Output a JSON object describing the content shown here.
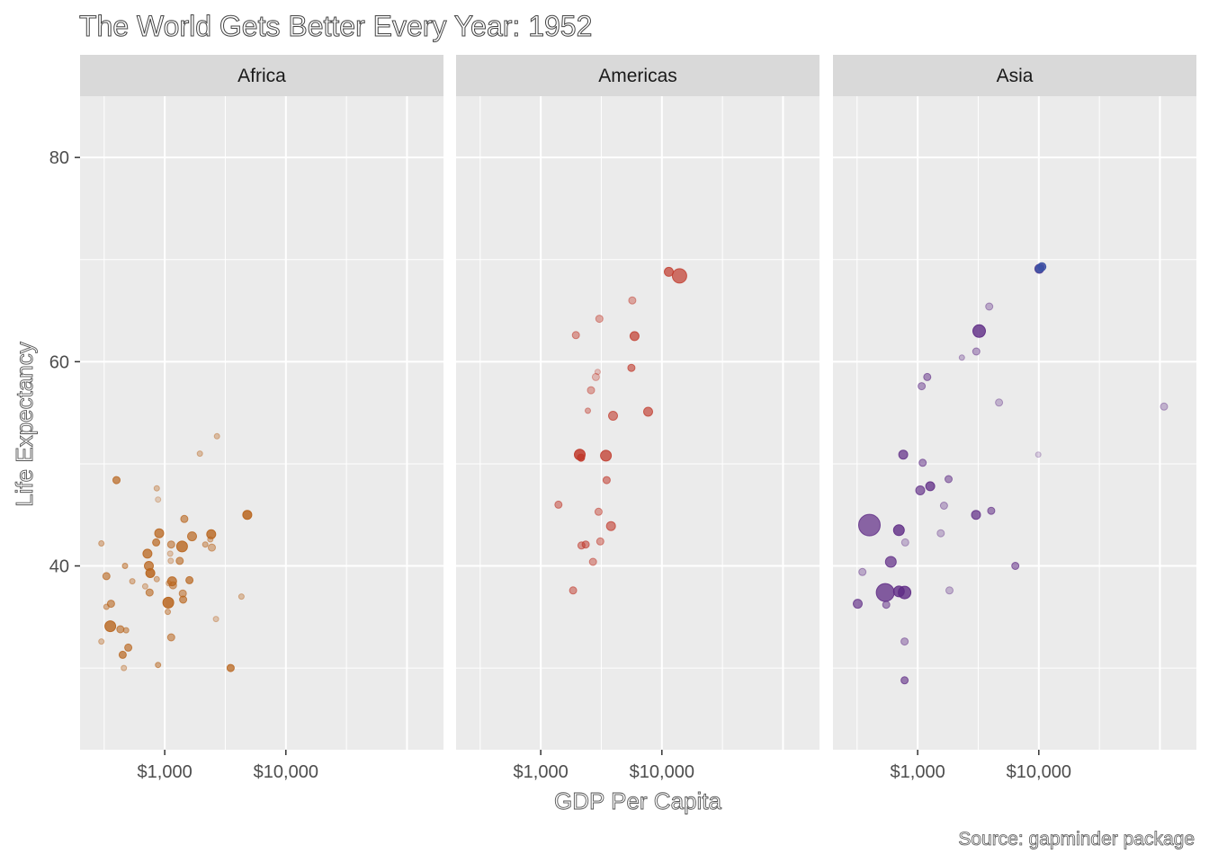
{
  "chart_data": {
    "type": "scatter",
    "title": "The World Gets Better Every Year: 1952",
    "xlabel": "GDP Per Capita",
    "ylabel": "Life Expectancy",
    "caption": "Source: gapminder package",
    "x_scale": "log10",
    "xlim": [
      200,
      200000
    ],
    "ylim": [
      22,
      86
    ],
    "x_ticks": [
      1000,
      10000
    ],
    "x_tick_labels": [
      "$1,000",
      "$10,000"
    ],
    "y_ticks": [
      40,
      60,
      80
    ],
    "y_tick_labels": [
      "40",
      "60",
      "80"
    ],
    "grid": true,
    "legend": "none",
    "panels": [
      {
        "name": "Africa",
        "color": "#b8651e",
        "points": [
          {
            "x": 300,
            "y": 42.2,
            "s": 3,
            "a": 0.4
          },
          {
            "x": 300,
            "y": 32.6,
            "s": 3,
            "a": 0.35
          },
          {
            "x": 330,
            "y": 39.0,
            "s": 4,
            "a": 0.6
          },
          {
            "x": 330,
            "y": 36.0,
            "s": 3,
            "a": 0.45
          },
          {
            "x": 360,
            "y": 36.3,
            "s": 4,
            "a": 0.6
          },
          {
            "x": 355,
            "y": 34.1,
            "s": 6,
            "a": 0.8
          },
          {
            "x": 400,
            "y": 48.4,
            "s": 4,
            "a": 0.7
          },
          {
            "x": 430,
            "y": 33.8,
            "s": 4,
            "a": 0.6
          },
          {
            "x": 450,
            "y": 31.3,
            "s": 4,
            "a": 0.7
          },
          {
            "x": 470,
            "y": 40.0,
            "s": 3,
            "a": 0.5
          },
          {
            "x": 480,
            "y": 33.7,
            "s": 3,
            "a": 0.5
          },
          {
            "x": 460,
            "y": 30.0,
            "s": 3,
            "a": 0.35
          },
          {
            "x": 500,
            "y": 32.0,
            "s": 4,
            "a": 0.65
          },
          {
            "x": 540,
            "y": 38.5,
            "s": 3,
            "a": 0.4
          },
          {
            "x": 720,
            "y": 41.2,
            "s": 5,
            "a": 0.75
          },
          {
            "x": 740,
            "y": 40.0,
            "s": 5,
            "a": 0.75
          },
          {
            "x": 760,
            "y": 39.3,
            "s": 5,
            "a": 0.85
          },
          {
            "x": 750,
            "y": 37.4,
            "s": 4,
            "a": 0.6
          },
          {
            "x": 690,
            "y": 38.0,
            "s": 3,
            "a": 0.35
          },
          {
            "x": 850,
            "y": 42.3,
            "s": 4,
            "a": 0.7
          },
          {
            "x": 900,
            "y": 43.2,
            "s": 5,
            "a": 0.75
          },
          {
            "x": 860,
            "y": 47.6,
            "s": 3,
            "a": 0.35
          },
          {
            "x": 880,
            "y": 46.5,
            "s": 3,
            "a": 0.25
          },
          {
            "x": 860,
            "y": 38.7,
            "s": 3,
            "a": 0.4
          },
          {
            "x": 880,
            "y": 30.3,
            "s": 3,
            "a": 0.5
          },
          {
            "x": 1070,
            "y": 36.4,
            "s": 6,
            "a": 0.85
          },
          {
            "x": 1080,
            "y": 38.3,
            "s": 3,
            "a": 0.35
          },
          {
            "x": 1060,
            "y": 35.5,
            "s": 3,
            "a": 0.45
          },
          {
            "x": 1150,
            "y": 38.5,
            "s": 5,
            "a": 0.75
          },
          {
            "x": 1170,
            "y": 38.1,
            "s": 4,
            "a": 0.55
          },
          {
            "x": 1130,
            "y": 42.1,
            "s": 4,
            "a": 0.55
          },
          {
            "x": 1110,
            "y": 41.2,
            "s": 3,
            "a": 0.3
          },
          {
            "x": 1120,
            "y": 40.5,
            "s": 3,
            "a": 0.3
          },
          {
            "x": 1130,
            "y": 33.0,
            "s": 4,
            "a": 0.55
          },
          {
            "x": 1330,
            "y": 40.5,
            "s": 4,
            "a": 0.6
          },
          {
            "x": 1390,
            "y": 41.9,
            "s": 6,
            "a": 0.8
          },
          {
            "x": 1450,
            "y": 44.6,
            "s": 4,
            "a": 0.6
          },
          {
            "x": 1410,
            "y": 37.3,
            "s": 4,
            "a": 0.55
          },
          {
            "x": 1420,
            "y": 36.7,
            "s": 4,
            "a": 0.65
          },
          {
            "x": 1600,
            "y": 38.6,
            "s": 4,
            "a": 0.7
          },
          {
            "x": 1680,
            "y": 42.9,
            "s": 5,
            "a": 0.7
          },
          {
            "x": 1950,
            "y": 51.0,
            "s": 3,
            "a": 0.35
          },
          {
            "x": 2160,
            "y": 42.1,
            "s": 3,
            "a": 0.45
          },
          {
            "x": 2420,
            "y": 43.1,
            "s": 5,
            "a": 0.8
          },
          {
            "x": 2380,
            "y": 42.6,
            "s": 3,
            "a": 0.4
          },
          {
            "x": 2450,
            "y": 41.8,
            "s": 4,
            "a": 0.45
          },
          {
            "x": 2650,
            "y": 34.8,
            "s": 3,
            "a": 0.3
          },
          {
            "x": 2700,
            "y": 52.7,
            "s": 3,
            "a": 0.35
          },
          {
            "x": 3500,
            "y": 30.0,
            "s": 4,
            "a": 0.75
          },
          {
            "x": 4300,
            "y": 37.0,
            "s": 3,
            "a": 0.35
          },
          {
            "x": 4800,
            "y": 45.0,
            "s": 5,
            "a": 0.85
          }
        ]
      },
      {
        "name": "Americas",
        "color": "#c0392b",
        "points": [
          {
            "x": 1400,
            "y": 46.0,
            "s": 4,
            "a": 0.5
          },
          {
            "x": 1850,
            "y": 37.6,
            "s": 4,
            "a": 0.5
          },
          {
            "x": 1950,
            "y": 62.6,
            "s": 4,
            "a": 0.45
          },
          {
            "x": 2100,
            "y": 50.9,
            "s": 6,
            "a": 0.85
          },
          {
            "x": 2150,
            "y": 50.6,
            "s": 4,
            "a": 0.85
          },
          {
            "x": 2170,
            "y": 42.0,
            "s": 4,
            "a": 0.5
          },
          {
            "x": 2350,
            "y": 42.1,
            "s": 4,
            "a": 0.55
          },
          {
            "x": 2450,
            "y": 55.2,
            "s": 3,
            "a": 0.4
          },
          {
            "x": 2600,
            "y": 57.2,
            "s": 4,
            "a": 0.4
          },
          {
            "x": 2700,
            "y": 40.4,
            "s": 4,
            "a": 0.45
          },
          {
            "x": 2850,
            "y": 58.5,
            "s": 4,
            "a": 0.3
          },
          {
            "x": 2950,
            "y": 59.0,
            "s": 3,
            "a": 0.25
          },
          {
            "x": 3050,
            "y": 64.2,
            "s": 4,
            "a": 0.4
          },
          {
            "x": 3000,
            "y": 45.3,
            "s": 4,
            "a": 0.45
          },
          {
            "x": 3100,
            "y": 42.4,
            "s": 4,
            "a": 0.45
          },
          {
            "x": 3450,
            "y": 50.8,
            "s": 6,
            "a": 0.75
          },
          {
            "x": 3500,
            "y": 48.4,
            "s": 4,
            "a": 0.55
          },
          {
            "x": 3800,
            "y": 43.9,
            "s": 5,
            "a": 0.6
          },
          {
            "x": 3950,
            "y": 54.7,
            "s": 5,
            "a": 0.6
          },
          {
            "x": 5600,
            "y": 59.4,
            "s": 4,
            "a": 0.6
          },
          {
            "x": 5700,
            "y": 66.0,
            "s": 4,
            "a": 0.4
          },
          {
            "x": 5950,
            "y": 62.5,
            "s": 5,
            "a": 0.7
          },
          {
            "x": 7700,
            "y": 55.1,
            "s": 5,
            "a": 0.65
          },
          {
            "x": 11400,
            "y": 68.8,
            "s": 5,
            "a": 0.7
          },
          {
            "x": 13990,
            "y": 68.4,
            "s": 8,
            "a": 0.7
          }
        ]
      },
      {
        "name": "Asia",
        "color": "#5e2a84",
        "points": [
          {
            "x": 320,
            "y": 36.3,
            "s": 5,
            "a": 0.65
          },
          {
            "x": 350,
            "y": 39.4,
            "s": 4,
            "a": 0.35
          },
          {
            "x": 400,
            "y": 44.0,
            "s": 12,
            "a": 0.7
          },
          {
            "x": 550,
            "y": 36.2,
            "s": 4,
            "a": 0.5
          },
          {
            "x": 540,
            "y": 37.4,
            "s": 10,
            "a": 0.75
          },
          {
            "x": 600,
            "y": 40.4,
            "s": 6,
            "a": 0.7
          },
          {
            "x": 700,
            "y": 37.5,
            "s": 6,
            "a": 0.8
          },
          {
            "x": 780,
            "y": 37.4,
            "s": 7,
            "a": 0.8
          },
          {
            "x": 700,
            "y": 43.5,
            "s": 6,
            "a": 0.8
          },
          {
            "x": 760,
            "y": 50.9,
            "s": 5,
            "a": 0.7
          },
          {
            "x": 790,
            "y": 42.3,
            "s": 4,
            "a": 0.3
          },
          {
            "x": 780,
            "y": 32.6,
            "s": 4,
            "a": 0.4
          },
          {
            "x": 780,
            "y": 28.8,
            "s": 4,
            "a": 0.6
          },
          {
            "x": 1050,
            "y": 47.4,
            "s": 5,
            "a": 0.65
          },
          {
            "x": 1080,
            "y": 57.6,
            "s": 4,
            "a": 0.45
          },
          {
            "x": 1100,
            "y": 50.1,
            "s": 4,
            "a": 0.5
          },
          {
            "x": 1200,
            "y": 58.5,
            "s": 4,
            "a": 0.5
          },
          {
            "x": 1270,
            "y": 47.8,
            "s": 5,
            "a": 0.75
          },
          {
            "x": 1550,
            "y": 43.2,
            "s": 4,
            "a": 0.3
          },
          {
            "x": 1650,
            "y": 45.9,
            "s": 4,
            "a": 0.35
          },
          {
            "x": 1800,
            "y": 48.5,
            "s": 4,
            "a": 0.5
          },
          {
            "x": 1830,
            "y": 37.6,
            "s": 4,
            "a": 0.3
          },
          {
            "x": 2320,
            "y": 60.4,
            "s": 3,
            "a": 0.3
          },
          {
            "x": 3030,
            "y": 45.0,
            "s": 5,
            "a": 0.7
          },
          {
            "x": 3050,
            "y": 61.0,
            "s": 4,
            "a": 0.4
          },
          {
            "x": 3220,
            "y": 63.0,
            "s": 7,
            "a": 0.8
          },
          {
            "x": 3900,
            "y": 65.4,
            "s": 4,
            "a": 0.35
          },
          {
            "x": 4050,
            "y": 45.4,
            "s": 4,
            "a": 0.55
          },
          {
            "x": 4700,
            "y": 56.0,
            "s": 4,
            "a": 0.3
          },
          {
            "x": 6400,
            "y": 40.0,
            "s": 4,
            "a": 0.55
          },
          {
            "x": 9900,
            "y": 50.9,
            "s": 3,
            "a": 0.2
          },
          {
            "x": 10100,
            "y": 69.1,
            "s": 5,
            "a": 0.75
          },
          {
            "x": 10600,
            "y": 69.3,
            "s": 3,
            "a": 0.6
          },
          {
            "x": 108000,
            "y": 55.6,
            "s": 4,
            "a": 0.3
          }
        ],
        "highlight": [
          {
            "x": 10100,
            "y": 69.1,
            "color": "#3a52a6"
          },
          {
            "x": 10600,
            "y": 69.3,
            "color": "#3a52a6"
          }
        ]
      }
    ]
  }
}
